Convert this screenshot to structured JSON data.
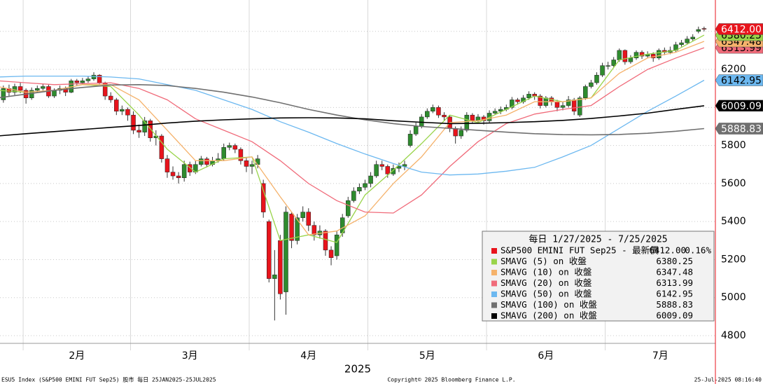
{
  "chart_data": {
    "type": "candlestick",
    "x_label": "2025",
    "xlim": [
      1.4,
      128
    ],
    "ylim": [
      4759.5,
      6565
    ],
    "yticks": [
      4800,
      5000,
      5200,
      5400,
      5600,
      5800,
      6000,
      6200,
      6400
    ],
    "grid": true,
    "months": {
      "labels": [
        "2月",
        "3月",
        "4月",
        "5月",
        "6月",
        "7月"
      ],
      "boundaries": [
        5.5,
        24.5,
        45.5,
        66.5,
        87.5,
        108.5
      ]
    },
    "candles": {
      "name": "S&P500 EMINI FUT Sep25 - 最新價",
      "up_color": "#2e8b2e",
      "down_color": "#e8141c",
      "x": [
        1,
        2,
        3,
        4,
        5,
        6,
        7,
        8,
        9,
        10,
        11,
        12,
        13,
        14,
        15,
        16,
        17,
        18,
        19,
        20,
        21,
        22,
        23,
        24,
        25,
        26,
        27,
        28,
        29,
        30,
        31,
        32,
        33,
        34,
        35,
        36,
        37,
        38,
        39,
        40,
        41,
        42,
        43,
        44,
        45,
        46,
        47,
        48,
        49,
        50,
        51,
        52,
        53,
        54,
        55,
        56,
        57,
        58,
        59,
        60,
        61,
        62,
        63,
        64,
        65,
        66,
        67,
        68,
        69,
        70,
        71,
        72,
        73,
        74,
        75,
        76,
        77,
        78,
        79,
        80,
        81,
        82,
        83,
        84,
        85,
        86,
        87,
        88,
        89,
        90,
        91,
        92,
        93,
        94,
        95,
        96,
        97,
        98,
        99,
        100,
        101,
        102,
        103,
        104,
        105,
        106,
        107,
        108,
        109,
        110,
        111,
        112,
        113,
        114,
        115,
        116,
        117,
        118,
        119,
        120,
        121,
        122,
        123,
        124,
        125,
        126
      ],
      "open": [
        6060,
        6040,
        6100,
        6080,
        6110,
        6090,
        6050,
        6090,
        6100,
        6110,
        6060,
        6090,
        6100,
        6080,
        6140,
        6130,
        6140,
        6150,
        6170,
        6130,
        6060,
        6040,
        5980,
        5990,
        5960,
        5880,
        5870,
        5930,
        5840,
        5850,
        5730,
        5660,
        5640,
        5630,
        5700,
        5660,
        5700,
        5730,
        5700,
        5720,
        5730,
        5790,
        5800,
        5780,
        5720,
        5690,
        5700,
        5600,
        5400,
        5100,
        5300,
        5030,
        5440,
        5300,
        5420,
        5450,
        5380,
        5330,
        5350,
        5250,
        5220,
        5340,
        5430,
        5510,
        5560,
        5580,
        5600,
        5640,
        5700,
        5690,
        5650,
        5680,
        5690,
        5800,
        5860,
        5900,
        5950,
        5980,
        6000,
        5960,
        5950,
        5890,
        5850,
        5880,
        5960,
        5930,
        5950,
        5930,
        5970,
        5980,
        5990,
        6000,
        6040,
        6030,
        6050,
        6070,
        6060,
        6010,
        6050,
        6030,
        6000,
        6010,
        6040,
        5960,
        6050,
        6110,
        6130,
        6170,
        6220,
        6220,
        6250,
        6300,
        6240,
        6260,
        6290,
        6270,
        6280,
        6260,
        6300,
        6290,
        6300,
        6330,
        6340,
        6360,
        6400,
        6415
      ],
      "high": [
        6075,
        6115,
        6120,
        6125,
        6130,
        6100,
        6105,
        6115,
        6125,
        6120,
        6100,
        6115,
        6110,
        6150,
        6150,
        6155,
        6165,
        6185,
        6175,
        6135,
        6080,
        6050,
        6010,
        6000,
        5980,
        5910,
        5950,
        5940,
        5880,
        5860,
        5750,
        5690,
        5660,
        5720,
        5715,
        5720,
        5745,
        5740,
        5740,
        5760,
        5810,
        5815,
        5810,
        5790,
        5735,
        5720,
        5750,
        5620,
        5410,
        5250,
        5330,
        5480,
        5450,
        5440,
        5480,
        5470,
        5400,
        5380,
        5360,
        5270,
        5350,
        5440,
        5530,
        5580,
        5600,
        5620,
        5660,
        5720,
        5720,
        5700,
        5700,
        5710,
        5720,
        5880,
        5920,
        5965,
        5995,
        6015,
        6010,
        5975,
        5960,
        5900,
        5900,
        5975,
        5970,
        5965,
        5960,
        5985,
        5995,
        6005,
        6015,
        6055,
        6050,
        6065,
        6085,
        6080,
        6070,
        6060,
        6060,
        6040,
        6030,
        6060,
        6050,
        6060,
        6120,
        6145,
        6185,
        6235,
        6240,
        6265,
        6310,
        6305,
        6275,
        6300,
        6300,
        6295,
        6290,
        6310,
        6315,
        6320,
        6345,
        6355,
        6375,
        6385,
        6425,
        6425
      ],
      "low": [
        6020,
        6025,
        6060,
        6065,
        6075,
        6020,
        6040,
        6080,
        6090,
        6050,
        6050,
        6070,
        6060,
        6075,
        6115,
        6120,
        6130,
        6140,
        6120,
        6040,
        6025,
        5960,
        5960,
        5930,
        5860,
        5840,
        5850,
        5820,
        5800,
        5710,
        5630,
        5620,
        5600,
        5610,
        5640,
        5650,
        5690,
        5685,
        5690,
        5710,
        5720,
        5775,
        5760,
        5700,
        5660,
        5650,
        5680,
        5420,
        5080,
        4880,
        4990,
        4910,
        5260,
        5280,
        5400,
        5350,
        5300,
        5310,
        5220,
        5170,
        5200,
        5320,
        5420,
        5500,
        5545,
        5565,
        5580,
        5630,
        5670,
        5630,
        5640,
        5660,
        5670,
        5790,
        5850,
        5890,
        5940,
        5970,
        5945,
        5930,
        5870,
        5810,
        5835,
        5870,
        5915,
        5920,
        5910,
        5920,
        5960,
        5965,
        5980,
        5990,
        6015,
        6020,
        6040,
        6040,
        5995,
        6000,
        6010,
        5980,
        5985,
        6000,
        5960,
        5950,
        6040,
        6100,
        6120,
        6160,
        6200,
        6210,
        6240,
        6225,
        6230,
        6250,
        6255,
        6260,
        6240,
        6250,
        6275,
        6280,
        6290,
        6320,
        6330,
        6350,
        6390,
        6400
      ],
      "close": [
        6040,
        6100,
        6080,
        6110,
        6090,
        6050,
        6090,
        6100,
        6110,
        6060,
        6090,
        6100,
        6080,
        6140,
        6130,
        6140,
        6150,
        6170,
        6130,
        6060,
        6040,
        5980,
        5990,
        5960,
        5880,
        5870,
        5930,
        5840,
        5850,
        5730,
        5660,
        5640,
        5630,
        5700,
        5660,
        5700,
        5730,
        5700,
        5720,
        5730,
        5790,
        5800,
        5780,
        5720,
        5690,
        5700,
        5730,
        5450,
        5100,
        5120,
        5020,
        5450,
        5300,
        5420,
        5450,
        5380,
        5330,
        5350,
        5250,
        5210,
        5330,
        5420,
        5510,
        5560,
        5580,
        5600,
        5640,
        5700,
        5690,
        5650,
        5680,
        5690,
        5700,
        5860,
        5900,
        5950,
        5980,
        6000,
        5960,
        5950,
        5890,
        5850,
        5880,
        5960,
        5930,
        5950,
        5930,
        5970,
        5980,
        5990,
        6000,
        6040,
        6030,
        6050,
        6070,
        6060,
        6010,
        6050,
        6030,
        6000,
        6010,
        6040,
        5980,
        6050,
        6110,
        6130,
        6170,
        6220,
        6220,
        6250,
        6300,
        6240,
        6260,
        6290,
        6270,
        6280,
        6260,
        6300,
        6290,
        6300,
        6330,
        6340,
        6360,
        6370,
        6410,
        6412
      ],
      "close_label": "6412.00",
      "change": 0.16,
      "change_label": "0.16%"
    },
    "ma_x": [
      1,
      6,
      11,
      16,
      21,
      26,
      31,
      36,
      41,
      46,
      51,
      56,
      61,
      66,
      71,
      76,
      81,
      86,
      91,
      96,
      101,
      106,
      111,
      116,
      121,
      126
    ],
    "series": [
      {
        "name": "SMAVG (5)  on 收盤",
        "color": "#99d44a",
        "values": [
          6090,
          6080,
          6090,
          6120,
          6110,
          5960,
          5780,
          5660,
          5730,
          5740,
          5300,
          5330,
          5290,
          5540,
          5670,
          5810,
          5960,
          5920,
          5990,
          6060,
          6030,
          6050,
          6250,
          6280,
          6300,
          6380.25
        ]
      },
      {
        "name": "SMAVG (10)  on 收盤",
        "color": "#f5b26b",
        "values": [
          6110,
          6080,
          6090,
          6120,
          6120,
          6040,
          5880,
          5720,
          5720,
          5740,
          5530,
          5330,
          5350,
          5430,
          5600,
          5740,
          5920,
          5930,
          5960,
          6030,
          6030,
          6050,
          6180,
          6260,
          6290,
          6347.48
        ]
      },
      {
        "name": "SMAVG (20)  on 收盤",
        "color": "#f06b7a",
        "values": [
          6140,
          6130,
          6120,
          6125,
          6130,
          6100,
          6040,
          5940,
          5880,
          5820,
          5720,
          5600,
          5510,
          5450,
          5445,
          5540,
          5690,
          5820,
          5915,
          5965,
          5990,
          6010,
          6110,
          6200,
          6260,
          6313.99
        ]
      },
      {
        "name": "SMAVG (50)  on 收盤",
        "color": "#6cb8f0",
        "values": [
          6160,
          6165,
          6165,
          6165,
          6160,
          6150,
          6120,
          6090,
          6040,
          5990,
          5925,
          5870,
          5810,
          5755,
          5705,
          5660,
          5645,
          5650,
          5665,
          5685,
          5740,
          5800,
          5890,
          5980,
          6060,
          6142.95
        ]
      },
      {
        "name": "SMAVG (100)  on 收盤",
        "color": "#707070",
        "values": [
          6050,
          6070,
          6090,
          6105,
          6118,
          6120,
          6115,
          6100,
          6080,
          6055,
          6025,
          5990,
          5960,
          5935,
          5915,
          5900,
          5890,
          5880,
          5870,
          5862,
          5857,
          5856,
          5858,
          5864,
          5875,
          5888.83
        ]
      },
      {
        "name": "SMAVG (200)  on 收盤",
        "color": "#000000",
        "values": [
          5850,
          5862,
          5873,
          5884,
          5895,
          5905,
          5918,
          5928,
          5935,
          5940,
          5945,
          5946,
          5945,
          5940,
          5930,
          5922,
          5915,
          5917,
          5920,
          5925,
          5932,
          5942,
          5955,
          5970,
          5990,
          6009.09
        ]
      }
    ],
    "legend": {
      "title": "每日 1/27/2025 - 7/25/2025",
      "corner": "bottom-right"
    }
  },
  "footer": {
    "left": "ESU5 Index (S&P500 EMINI FUT  Sep25) 股市  每日 25JAN2025-25JUL2025",
    "center": "Copyright© 2025 Bloomberg Finance L.P.",
    "right": "25-Jul-2025 08:16:40"
  }
}
